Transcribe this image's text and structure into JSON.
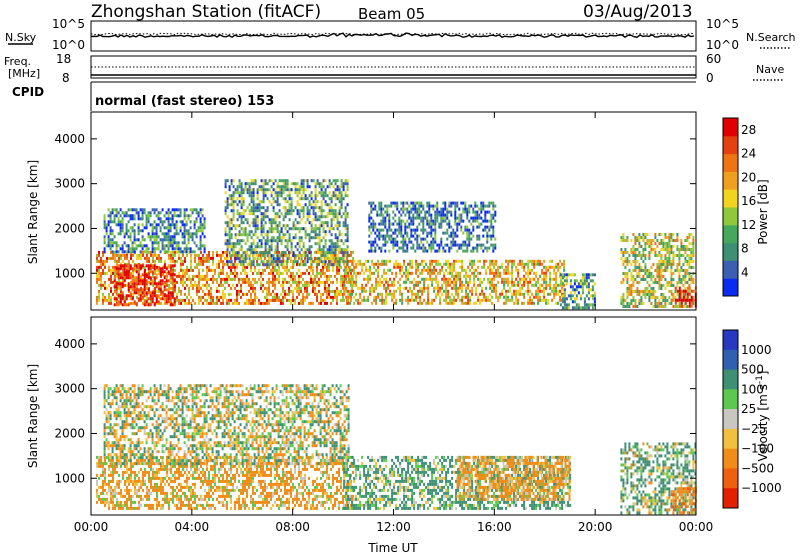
{
  "header": {
    "station": "Zhongshan Station (fitACF)",
    "beam": "Beam 05",
    "date": "03/Aug/2013"
  },
  "panels": {
    "nsky": {
      "label": "N.Sky",
      "top_tick": "10^5",
      "bottom_tick": "10^0"
    },
    "nsearch": {
      "label": "N.Search",
      "top_tick": "10^5",
      "bottom_tick": "10^0"
    },
    "freq": {
      "label_line1": "Freq.",
      "label_line2": "[MHz]",
      "top_tick": "18",
      "bottom_tick": "8"
    },
    "nave": {
      "label": "Nave",
      "top_tick": "60",
      "bottom_tick": "0"
    },
    "cpid": {
      "label": "CPID",
      "text": "normal (fast stereo) 153"
    }
  },
  "chart_data": [
    {
      "type": "heatmap",
      "title": "",
      "xlabel": "Time UT",
      "ylabel": "Slant Range [km]",
      "x_ticks": [
        "00:00",
        "04:00",
        "08:00",
        "12:00",
        "16:00",
        "20:00",
        "00:00"
      ],
      "y_ticks": [
        1000,
        2000,
        3000,
        4000
      ],
      "xlim_hours": [
        0,
        24
      ],
      "ylim_km": [
        180,
        4600
      ],
      "colorbar": {
        "label": "Power [dB]",
        "ticks": [
          4,
          8,
          12,
          16,
          20,
          24,
          28
        ],
        "range": [
          0,
          30
        ],
        "colors": [
          "#0a2cf0",
          "#3c5fb2",
          "#3e8f74",
          "#46a85a",
          "#90c83c",
          "#f0d420",
          "#f0a020",
          "#ee7414",
          "#e44010",
          "#e00000"
        ]
      },
      "features": [
        {
          "t0": 0.2,
          "t1": 10.4,
          "r0": 300,
          "r1": 1500,
          "v": 20
        },
        {
          "t0": 0.9,
          "t1": 3.3,
          "r0": 320,
          "r1": 1200,
          "v": 28
        },
        {
          "t0": 0.5,
          "t1": 4.5,
          "r0": 1500,
          "r1": 2450,
          "v": 7
        },
        {
          "t0": 5.3,
          "t1": 10.2,
          "r0": 1200,
          "r1": 3100,
          "v": 10
        },
        {
          "t0": 10.0,
          "t1": 18.8,
          "r0": 300,
          "r1": 1300,
          "v": 18
        },
        {
          "t0": 11.0,
          "t1": 16.0,
          "r0": 1500,
          "r1": 2600,
          "v": 6
        },
        {
          "t0": 18.6,
          "t1": 20.0,
          "r0": 250,
          "r1": 1000,
          "v": 9
        },
        {
          "t0": 21.0,
          "t1": 23.9,
          "r0": 250,
          "r1": 1900,
          "v": 15
        },
        {
          "t0": 23.0,
          "t1": 24.0,
          "r0": 250,
          "r1": 700,
          "v": 29
        }
      ]
    },
    {
      "type": "heatmap",
      "title": "",
      "xlabel": "Time UT",
      "ylabel": "Slant Range [km]",
      "x_ticks": [
        "00:00",
        "04:00",
        "08:00",
        "12:00",
        "16:00",
        "20:00",
        "00:00"
      ],
      "y_ticks": [
        1000,
        2000,
        3000,
        4000
      ],
      "xlim_hours": [
        0,
        24
      ],
      "ylim_km": [
        180,
        4600
      ],
      "colorbar": {
        "label": "Velocity [m s^-1]",
        "ticks": [
          "1000",
          "500",
          "100",
          "25",
          "−25",
          "−100",
          "−500",
          "−1000"
        ],
        "colors": [
          "#2838c0",
          "#3060b0",
          "#3e8f74",
          "#5cc850",
          "#c8c8c0",
          "#f0c040",
          "#f08c18",
          "#ee6010",
          "#e02000"
        ]
      },
      "features": [
        {
          "t0": 0.2,
          "t1": 10.4,
          "r0": 300,
          "r1": 1500,
          "v": -150
        },
        {
          "t0": 0.5,
          "t1": 10.2,
          "r0": 1300,
          "r1": 3100,
          "v": 0
        },
        {
          "t0": 10.0,
          "t1": 19.0,
          "r0": 300,
          "r1": 1500,
          "v": 150
        },
        {
          "t0": 14.5,
          "t1": 19.0,
          "r0": 500,
          "r1": 1500,
          "v": -200
        },
        {
          "t0": 21.0,
          "t1": 24.0,
          "r0": 250,
          "r1": 1800,
          "v": 120
        },
        {
          "t0": 23.0,
          "t1": 24.0,
          "r0": 250,
          "r1": 800,
          "v": -400
        }
      ]
    }
  ]
}
